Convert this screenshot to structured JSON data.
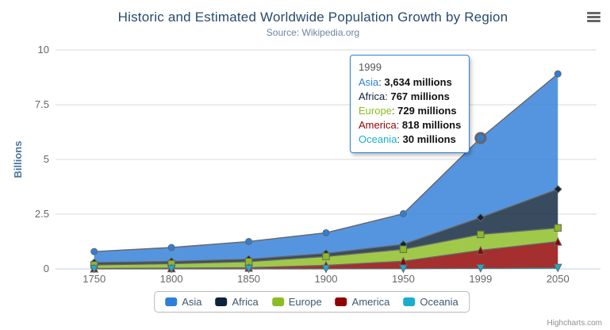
{
  "chart_data": {
    "type": "area",
    "stacking": "normal",
    "title": "Historic and Estimated Worldwide Population Growth by Region",
    "subtitle": "Source: Wikipedia.org",
    "categories": [
      "1750",
      "1800",
      "1850",
      "1900",
      "1950",
      "1999",
      "2050"
    ],
    "series": [
      {
        "name": "Asia",
        "color": "#2f7ed8",
        "marker": "circle",
        "values": [
          502,
          635,
          809,
          947,
          1402,
          3634,
          5268
        ]
      },
      {
        "name": "Africa",
        "color": "#0d233a",
        "marker": "diamond",
        "values": [
          106,
          107,
          111,
          133,
          221,
          767,
          1766
        ]
      },
      {
        "name": "Europe",
        "color": "#8bbc21",
        "marker": "square",
        "values": [
          163,
          203,
          276,
          408,
          547,
          729,
          628
        ]
      },
      {
        "name": "America",
        "color": "#910000",
        "marker": "triangle",
        "values": [
          18,
          31,
          54,
          156,
          339,
          818,
          1201
        ]
      },
      {
        "name": "Oceania",
        "color": "#1aadce",
        "marker": "triangle-down",
        "values": [
          2,
          2,
          2,
          6,
          13,
          30,
          46
        ]
      }
    ],
    "values_unit": "millions",
    "unit_divisor": 1000,
    "xlabel": "",
    "ylabel": "Billions",
    "ylim": [
      0,
      10
    ],
    "yticks": [
      0,
      2.5,
      5,
      7.5,
      10
    ],
    "ytick_labels": [
      "0",
      "2.5",
      "5",
      "7.5",
      "10"
    ],
    "grid": true,
    "legend_position": "bottom"
  },
  "tooltip": {
    "header": "1999",
    "rows": [
      {
        "name": "Asia",
        "value": "3,634 millions",
        "color": "#2f7ed8"
      },
      {
        "name": "Africa",
        "value": "767 millions",
        "color": "#0d233a"
      },
      {
        "name": "Europe",
        "value": "729 millions",
        "color": "#8bbc21"
      },
      {
        "name": "America",
        "value": "818 millions",
        "color": "#910000"
      },
      {
        "name": "Oceania",
        "value": "30 millions",
        "color": "#1aadce"
      }
    ],
    "hover": {
      "series": "Asia",
      "category": "1999",
      "category_index": 5
    }
  },
  "icons": {
    "context_menu": "hamburger-icon"
  },
  "credits": "Highcharts.com",
  "colors": {
    "title": "#274b6d",
    "subtitle": "#6d869f",
    "axis_label": "#666666",
    "y_axis_title": "#4d759e",
    "gridline": "#D8D8D8",
    "x_axis_line": "#C0D0E0",
    "boundary_line": "#666666",
    "legend_label": "#3e576f",
    "tooltip_border": "#2f7ed8",
    "credit": "#909090"
  }
}
